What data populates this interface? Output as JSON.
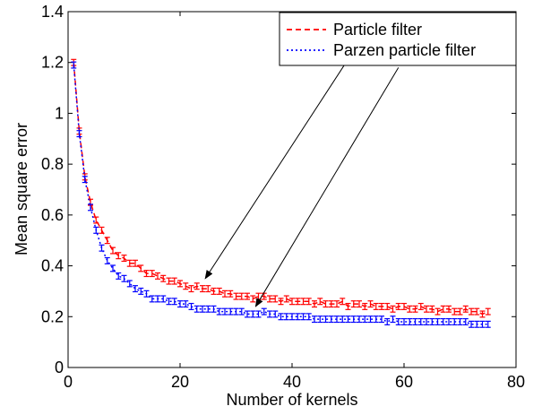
{
  "chart_data": {
    "type": "line",
    "title": "",
    "xlabel": "Number of kernels",
    "ylabel": "Mean square error",
    "xlim": [
      0,
      80
    ],
    "ylim": [
      0,
      1.4
    ],
    "xticks": [
      0,
      20,
      40,
      60,
      80
    ],
    "xtick_labels": [
      "0",
      "20",
      "40",
      "60",
      "80"
    ],
    "yticks": [
      0,
      0.2,
      0.4,
      0.6,
      0.8,
      1,
      1.2,
      1.4
    ],
    "ytick_labels": [
      "0",
      "0.2",
      "0.4",
      "0.6",
      "0.8",
      "1",
      "1.2",
      "1.4"
    ],
    "grid": false,
    "legend_position": "top-right",
    "x": [
      1,
      2,
      3,
      4,
      5,
      6,
      7,
      8,
      9,
      10,
      11,
      12,
      13,
      14,
      15,
      16,
      17,
      18,
      19,
      20,
      21,
      22,
      23,
      24,
      25,
      26,
      27,
      28,
      29,
      30,
      31,
      32,
      33,
      34,
      35,
      36,
      37,
      38,
      39,
      40,
      41,
      42,
      43,
      44,
      45,
      46,
      47,
      48,
      49,
      50,
      51,
      52,
      53,
      54,
      55,
      56,
      57,
      58,
      59,
      60,
      61,
      62,
      63,
      64,
      65,
      66,
      67,
      68,
      69,
      70,
      71,
      72,
      73,
      74,
      75
    ],
    "series": [
      {
        "name": "Particle filter",
        "color": "#ff0000",
        "line_style": "dashed",
        "values": [
          1.2,
          0.93,
          0.75,
          0.65,
          0.58,
          0.54,
          0.5,
          0.46,
          0.44,
          0.43,
          0.41,
          0.41,
          0.39,
          0.37,
          0.37,
          0.36,
          0.35,
          0.34,
          0.34,
          0.33,
          0.32,
          0.31,
          0.32,
          0.31,
          0.31,
          0.3,
          0.3,
          0.29,
          0.29,
          0.28,
          0.28,
          0.28,
          0.27,
          0.28,
          0.28,
          0.27,
          0.27,
          0.26,
          0.27,
          0.26,
          0.26,
          0.26,
          0.26,
          0.25,
          0.26,
          0.25,
          0.25,
          0.25,
          0.26,
          0.24,
          0.25,
          0.25,
          0.24,
          0.25,
          0.24,
          0.24,
          0.24,
          0.23,
          0.24,
          0.24,
          0.23,
          0.23,
          0.24,
          0.23,
          0.23,
          0.22,
          0.23,
          0.23,
          0.22,
          0.22,
          0.23,
          0.22,
          0.22,
          0.21,
          0.22
        ],
        "errors": [
          0.012,
          0.012,
          0.012,
          0.012,
          0.012,
          0.012,
          0.012,
          0.012,
          0.012,
          0.012,
          0.012,
          0.012,
          0.012,
          0.012,
          0.012,
          0.012,
          0.012,
          0.012,
          0.012,
          0.012,
          0.012,
          0.012,
          0.012,
          0.012,
          0.012,
          0.012,
          0.012,
          0.012,
          0.012,
          0.012,
          0.012,
          0.012,
          0.012,
          0.012,
          0.012,
          0.012,
          0.012,
          0.012,
          0.012,
          0.012,
          0.012,
          0.012,
          0.012,
          0.012,
          0.012,
          0.012,
          0.012,
          0.012,
          0.012,
          0.012,
          0.012,
          0.012,
          0.012,
          0.012,
          0.012,
          0.012,
          0.012,
          0.012,
          0.012,
          0.012,
          0.012,
          0.012,
          0.012,
          0.012,
          0.012,
          0.012,
          0.012,
          0.012,
          0.012,
          0.012,
          0.012,
          0.012,
          0.012,
          0.012,
          0.012
        ]
      },
      {
        "name": "Parzen particle filter",
        "color": "#0000ff",
        "line_style": "dotted",
        "values": [
          1.19,
          0.92,
          0.74,
          0.63,
          0.54,
          0.47,
          0.42,
          0.39,
          0.36,
          0.35,
          0.33,
          0.31,
          0.3,
          0.29,
          0.27,
          0.27,
          0.27,
          0.26,
          0.26,
          0.25,
          0.25,
          0.24,
          0.23,
          0.23,
          0.23,
          0.23,
          0.22,
          0.22,
          0.22,
          0.22,
          0.22,
          0.21,
          0.21,
          0.21,
          0.22,
          0.21,
          0.21,
          0.2,
          0.2,
          0.2,
          0.2,
          0.2,
          0.2,
          0.19,
          0.19,
          0.19,
          0.19,
          0.19,
          0.19,
          0.19,
          0.19,
          0.19,
          0.19,
          0.19,
          0.19,
          0.19,
          0.18,
          0.19,
          0.18,
          0.18,
          0.18,
          0.18,
          0.18,
          0.18,
          0.18,
          0.18,
          0.18,
          0.18,
          0.18,
          0.18,
          0.18,
          0.17,
          0.17,
          0.17,
          0.17
        ],
        "errors": [
          0.012,
          0.012,
          0.012,
          0.012,
          0.012,
          0.012,
          0.012,
          0.012,
          0.012,
          0.012,
          0.012,
          0.012,
          0.012,
          0.012,
          0.012,
          0.012,
          0.012,
          0.012,
          0.012,
          0.012,
          0.012,
          0.012,
          0.012,
          0.012,
          0.012,
          0.012,
          0.012,
          0.012,
          0.012,
          0.012,
          0.012,
          0.012,
          0.012,
          0.012,
          0.012,
          0.012,
          0.012,
          0.012,
          0.012,
          0.012,
          0.012,
          0.012,
          0.012,
          0.012,
          0.012,
          0.012,
          0.012,
          0.012,
          0.012,
          0.012,
          0.012,
          0.012,
          0.012,
          0.012,
          0.012,
          0.012,
          0.012,
          0.012,
          0.012,
          0.012,
          0.012,
          0.012,
          0.012,
          0.012,
          0.012,
          0.012,
          0.012,
          0.012,
          0.012,
          0.012,
          0.012,
          0.012,
          0.012,
          0.012,
          0.012
        ]
      }
    ],
    "annotations": [
      {
        "type": "arrow",
        "from": [
          52,
          1.28
        ],
        "to": [
          24.5,
          0.35
        ]
      },
      {
        "type": "arrow",
        "from": [
          59,
          1.18
        ],
        "to": [
          33.5,
          0.24
        ]
      }
    ]
  }
}
